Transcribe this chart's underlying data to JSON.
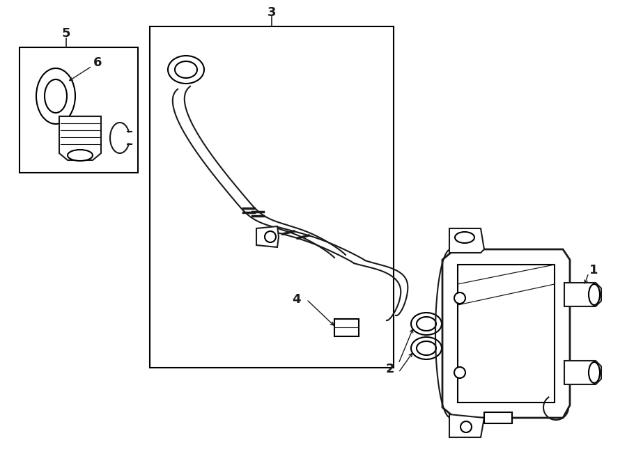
{
  "bg_color": "#ffffff",
  "line_color": "#1a1a1a",
  "fig_width": 9.0,
  "fig_height": 6.62,
  "dpi": 100
}
